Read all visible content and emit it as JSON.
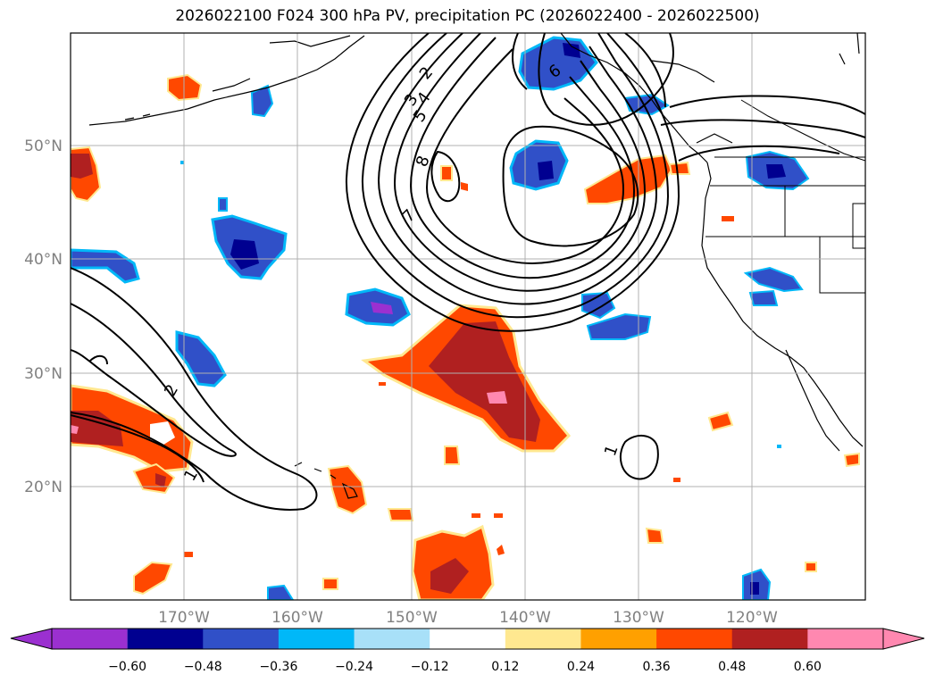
{
  "title": "2026022100 F024 300 hPa PV, precipitation PC (2026022400 - 2026022500)",
  "map": {
    "lon_labels": [
      "170°W",
      "160°W",
      "150°W",
      "140°W",
      "130°W",
      "120°W"
    ],
    "lat_labels": [
      "50°N",
      "40°N",
      "30°N",
      "20°N"
    ],
    "gridlines": true,
    "contour_labels": [
      "2",
      "3",
      "4",
      "5",
      "6",
      "7",
      "8",
      "2",
      "1",
      "1"
    ]
  },
  "colorbar": {
    "tick_labels": [
      "−0.60",
      "−0.48",
      "−0.36",
      "−0.24",
      "−0.12",
      "0.12",
      "0.24",
      "0.36",
      "0.48",
      "0.60"
    ],
    "colors": {
      "below": "#9b30d0",
      "neg_048_060": "#000090",
      "neg_036_048": "#3050c8",
      "neg_024_036": "#00b8f8",
      "neg_012_024": "#a8e0f8",
      "neutral": "#ffffff",
      "pos_012_024": "#ffe890",
      "pos_024_036": "#ffa000",
      "pos_036_048": "#ff4800",
      "pos_048_060": "#b02020",
      "above": "#ff88b0"
    }
  }
}
